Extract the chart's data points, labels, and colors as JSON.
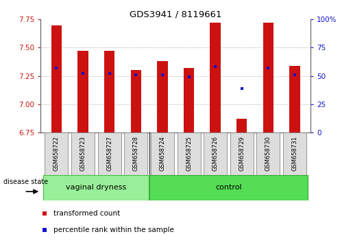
{
  "title": "GDS3941 / 8119661",
  "samples": [
    "GSM658722",
    "GSM658723",
    "GSM658727",
    "GSM658728",
    "GSM658724",
    "GSM658725",
    "GSM658726",
    "GSM658729",
    "GSM658730",
    "GSM658731"
  ],
  "bar_values": [
    7.7,
    7.47,
    7.47,
    7.3,
    7.38,
    7.32,
    7.72,
    6.87,
    7.72,
    7.34
  ],
  "bar_bottom": 6.75,
  "blue_dot_y_left": [
    7.32,
    7.27,
    7.27,
    7.26,
    7.26,
    7.24,
    7.33,
    7.14,
    7.32,
    7.26
  ],
  "ylim": [
    6.75,
    7.75
  ],
  "y2lim": [
    0,
    100
  ],
  "yticks": [
    6.75,
    7.0,
    7.25,
    7.5,
    7.75
  ],
  "y2ticks": [
    0,
    25,
    50,
    75,
    100
  ],
  "bar_color": "#cc1111",
  "dot_color": "#1111cc",
  "group1_count": 4,
  "group2_count": 6,
  "group1_label": "vaginal dryness",
  "group2_label": "control",
  "group1_color": "#99ee99",
  "group2_color": "#55dd55",
  "disease_state_label": "disease state",
  "legend_bar_label": "transformed count",
  "legend_dot_label": "percentile rank within the sample",
  "tick_label_color_left": "#cc1111",
  "tick_label_color_right": "#1111cc",
  "grid_color": "#999999",
  "spine_color": "#666666"
}
